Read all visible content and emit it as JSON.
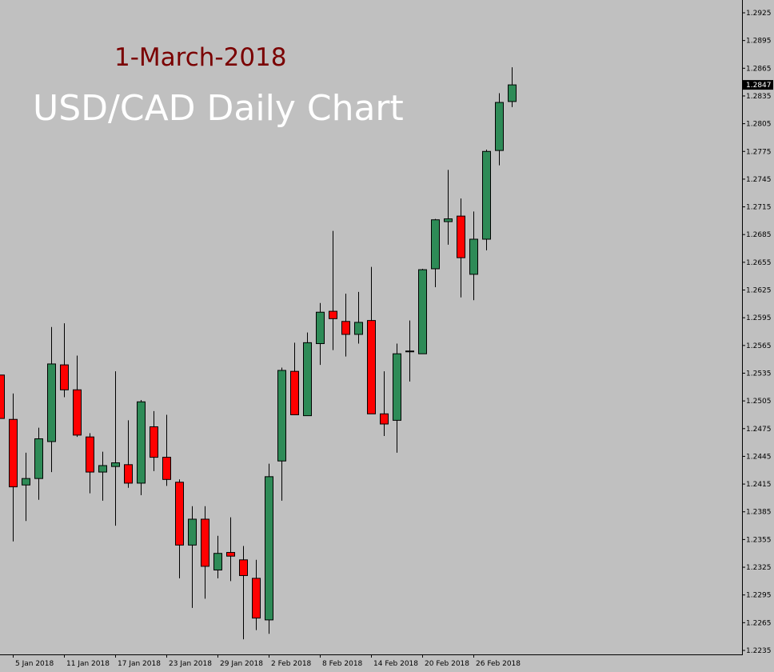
{
  "header": {
    "date": "1-March-2018",
    "title": "USD/CAD Daily Chart"
  },
  "colors": {
    "background": "#c0c0c0",
    "bull": "#2e8b57",
    "bear": "#ff0000",
    "candle_border": "#000000",
    "axis": "#000000",
    "price_label_bg": "#000000",
    "price_label_fg": "#ffffff"
  },
  "chart_data": {
    "type": "candlestick",
    "title": "USD/CAD Daily Chart",
    "ylim": [
      1.2235,
      1.294
    ],
    "grid": false,
    "y_ticks": [
      "1.2925",
      "1.2895",
      "1.2865",
      "1.2835",
      "1.2805",
      "1.2775",
      "1.2745",
      "1.2715",
      "1.2685",
      "1.2655",
      "1.2625",
      "1.2595",
      "1.2565",
      "1.2535",
      "1.2505",
      "1.2475",
      "1.2445",
      "1.2415",
      "1.2385",
      "1.2355",
      "1.2325",
      "1.2295",
      "1.2265",
      "1.2235"
    ],
    "x_ticks": [
      "5 Jan 2018",
      "11 Jan 2018",
      "17 Jan 2018",
      "23 Jan 2018",
      "29 Jan 2018",
      "2 Feb 2018",
      "8 Feb 2018",
      "14 Feb 2018",
      "20 Feb 2018",
      "26 Feb 2018"
    ],
    "x_tick_candle_index": [
      1,
      5,
      9,
      13,
      17,
      21,
      25,
      29,
      33,
      37
    ],
    "current_price": "1.2847",
    "candles": [
      {
        "open": 1.2533,
        "high": 1.2533,
        "low": 1.2486,
        "close": 1.2486
      },
      {
        "open": 1.2485,
        "high": 1.2513,
        "low": 1.2353,
        "close": 1.2412
      },
      {
        "open": 1.2414,
        "high": 1.2449,
        "low": 1.2375,
        "close": 1.2421
      },
      {
        "open": 1.2421,
        "high": 1.2476,
        "low": 1.2398,
        "close": 1.2464
      },
      {
        "open": 1.2461,
        "high": 1.2585,
        "low": 1.2428,
        "close": 1.2545
      },
      {
        "open": 1.2544,
        "high": 1.2589,
        "low": 1.2509,
        "close": 1.2517
      },
      {
        "open": 1.2517,
        "high": 1.2554,
        "low": 1.2466,
        "close": 1.2468
      },
      {
        "open": 1.2466,
        "high": 1.247,
        "low": 1.2405,
        "close": 1.2428
      },
      {
        "open": 1.2428,
        "high": 1.245,
        "low": 1.2397,
        "close": 1.2435
      },
      {
        "open": 1.2434,
        "high": 1.2537,
        "low": 1.237,
        "close": 1.2438
      },
      {
        "open": 1.2436,
        "high": 1.2484,
        "low": 1.2411,
        "close": 1.2416
      },
      {
        "open": 1.2416,
        "high": 1.2506,
        "low": 1.2403,
        "close": 1.2504
      },
      {
        "open": 1.2477,
        "high": 1.2494,
        "low": 1.2429,
        "close": 1.2444
      },
      {
        "open": 1.2444,
        "high": 1.249,
        "low": 1.2413,
        "close": 1.242
      },
      {
        "open": 1.2417,
        "high": 1.242,
        "low": 1.2313,
        "close": 1.2349
      },
      {
        "open": 1.2349,
        "high": 1.2391,
        "low": 1.2281,
        "close": 1.2377
      },
      {
        "open": 1.2377,
        "high": 1.2391,
        "low": 1.2291,
        "close": 1.2326
      },
      {
        "open": 1.2322,
        "high": 1.2359,
        "low": 1.2313,
        "close": 1.234
      },
      {
        "open": 1.2341,
        "high": 1.2379,
        "low": 1.231,
        "close": 1.2337
      },
      {
        "open": 1.2333,
        "high": 1.2348,
        "low": 1.2247,
        "close": 1.2316
      },
      {
        "open": 1.2313,
        "high": 1.2333,
        "low": 1.2257,
        "close": 1.227
      },
      {
        "open": 1.2268,
        "high": 1.2437,
        "low": 1.2253,
        "close": 1.2423
      },
      {
        "open": 1.244,
        "high": 1.2541,
        "low": 1.2397,
        "close": 1.2538
      },
      {
        "open": 1.2537,
        "high": 1.2568,
        "low": 1.249,
        "close": 1.249
      },
      {
        "open": 1.2489,
        "high": 1.2579,
        "low": 1.2489,
        "close": 1.2568
      },
      {
        "open": 1.2567,
        "high": 1.2611,
        "low": 1.2544,
        "close": 1.2601
      },
      {
        "open": 1.2602,
        "high": 1.2689,
        "low": 1.256,
        "close": 1.2594
      },
      {
        "open": 1.2591,
        "high": 1.2621,
        "low": 1.2553,
        "close": 1.2577
      },
      {
        "open": 1.2577,
        "high": 1.2623,
        "low": 1.2567,
        "close": 1.259
      },
      {
        "open": 1.2592,
        "high": 1.265,
        "low": 1.2491,
        "close": 1.2491
      },
      {
        "open": 1.2491,
        "high": 1.2537,
        "low": 1.2467,
        "close": 1.248
      },
      {
        "open": 1.2484,
        "high": 1.2567,
        "low": 1.2449,
        "close": 1.2556
      },
      {
        "open": 1.2559,
        "high": 1.2592,
        "low": 1.2526,
        "close": 1.2559
      },
      {
        "open": 1.2556,
        "high": 1.2648,
        "low": 1.2556,
        "close": 1.2647
      },
      {
        "open": 1.2648,
        "high": 1.2702,
        "low": 1.2628,
        "close": 1.2701
      },
      {
        "open": 1.2699,
        "high": 1.2755,
        "low": 1.2674,
        "close": 1.2702
      },
      {
        "open": 1.2705,
        "high": 1.2724,
        "low": 1.2617,
        "close": 1.266
      },
      {
        "open": 1.2642,
        "high": 1.271,
        "low": 1.2614,
        "close": 1.268
      },
      {
        "open": 1.268,
        "high": 1.2777,
        "low": 1.2668,
        "close": 1.2775
      },
      {
        "open": 1.2776,
        "high": 1.2838,
        "low": 1.276,
        "close": 1.2828
      },
      {
        "open": 1.2829,
        "high": 1.2866,
        "low": 1.2823,
        "close": 1.2847
      }
    ]
  }
}
